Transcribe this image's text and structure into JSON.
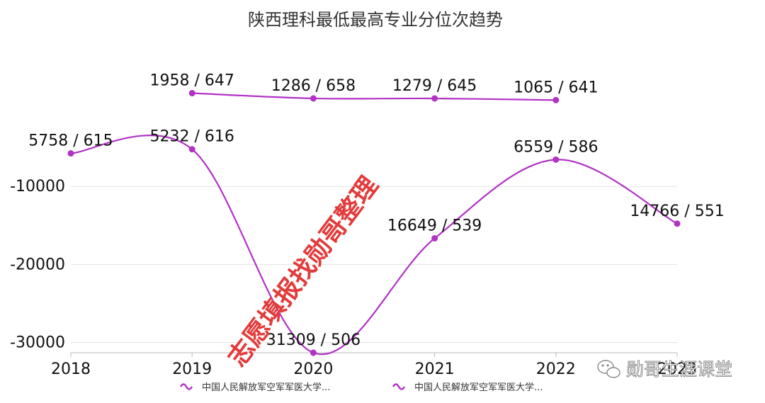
{
  "chart_data": {
    "type": "line",
    "title": "陕西理科最低最高专业分位次趋势",
    "xlabel": "",
    "ylabel": "",
    "categories": [
      "2018",
      "2019",
      "2020",
      "2021",
      "2022",
      "2023"
    ],
    "yticks": [
      -10000,
      -20000,
      -30000
    ],
    "ylim": [
      -31309,
      5000
    ],
    "grid": true,
    "legend_position": "bottom",
    "smooth": true,
    "series": [
      {
        "name": "中国人民解放军空军军医大学...",
        "color": "#b232c6",
        "values": [
          null,
          1958,
          1286,
          1279,
          1065,
          null
        ],
        "labels": [
          "",
          "1958 / 647",
          "1286 / 658",
          "1279 / 645",
          "1065 / 641",
          ""
        ]
      },
      {
        "name": "中国人民解放军空军军医大学...",
        "color": "#b232c6",
        "values": [
          -5758,
          -5232,
          -31309,
          -16649,
          -6559,
          -14766
        ],
        "labels": [
          "5758 / 615",
          "5232 / 616",
          "31309 / 506",
          "16649 / 539",
          "6559 / 586",
          "14766 / 551"
        ]
      }
    ]
  },
  "watermark": {
    "text": "志愿填报找勋哥整理"
  },
  "brand": {
    "text": "勋哥生涯课堂",
    "icon": "wechat-icon"
  }
}
